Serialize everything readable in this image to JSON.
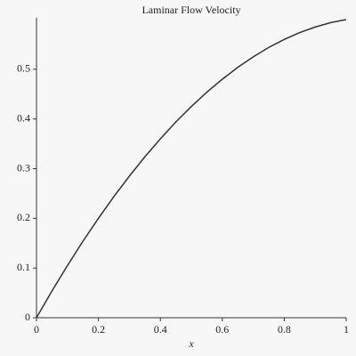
{
  "chart_data": {
    "type": "line",
    "title": "Laminar Flow Velocity",
    "xlabel": "x",
    "x": [
      0,
      0.05,
      0.1,
      0.15,
      0.2,
      0.25,
      0.3,
      0.35,
      0.4,
      0.45,
      0.5,
      0.55,
      0.6,
      0.65,
      0.7,
      0.75,
      0.8,
      0.85,
      0.9,
      0.95,
      1
    ],
    "series": [
      {
        "color": "#333333",
        "values": [
          0,
          0.054,
          0.105,
          0.154,
          0.2,
          0.244,
          0.285,
          0.324,
          0.36,
          0.394,
          0.425,
          0.454,
          0.48,
          0.504,
          0.525,
          0.544,
          0.56,
          0.574,
          0.585,
          0.594,
          0.6
        ]
      }
    ],
    "xlim": [
      0,
      1
    ],
    "ylim": [
      0,
      0.6
    ],
    "xticks": [
      0,
      0.2,
      0.4,
      0.6,
      0.8,
      1
    ],
    "yticks": [
      0,
      0.1,
      0.2,
      0.3,
      0.4,
      0.5
    ]
  }
}
